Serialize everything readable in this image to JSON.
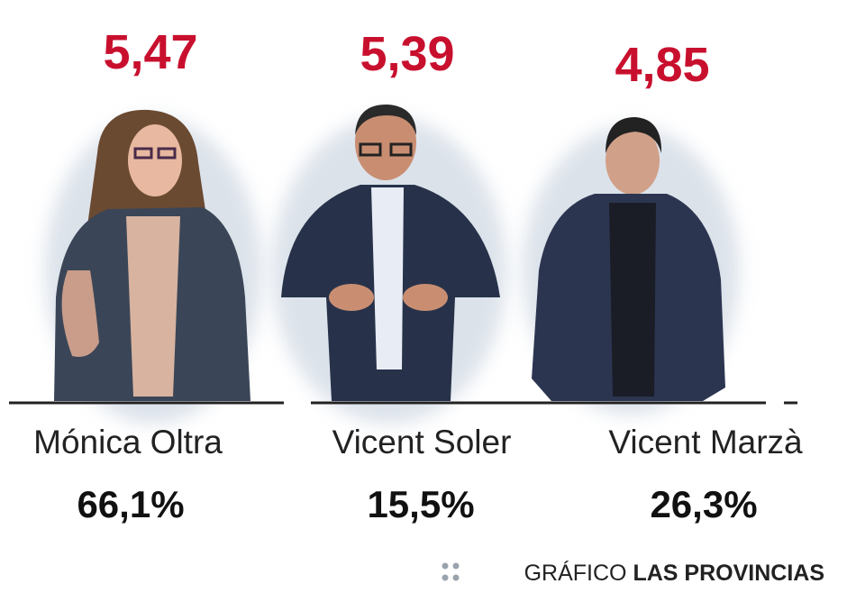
{
  "people": [
    {
      "score": "5,47",
      "name": "Mónica Oltra",
      "percent": "66,1%"
    },
    {
      "score": "5,39",
      "name": "Vicent Soler",
      "percent": "15,5%"
    },
    {
      "score": "4,85",
      "name": "Vicent Marzà",
      "percent": "26,3%"
    }
  ],
  "credit": {
    "prefix": "GRÁFICO",
    "brand": "LAS PROVINCIAS"
  }
}
